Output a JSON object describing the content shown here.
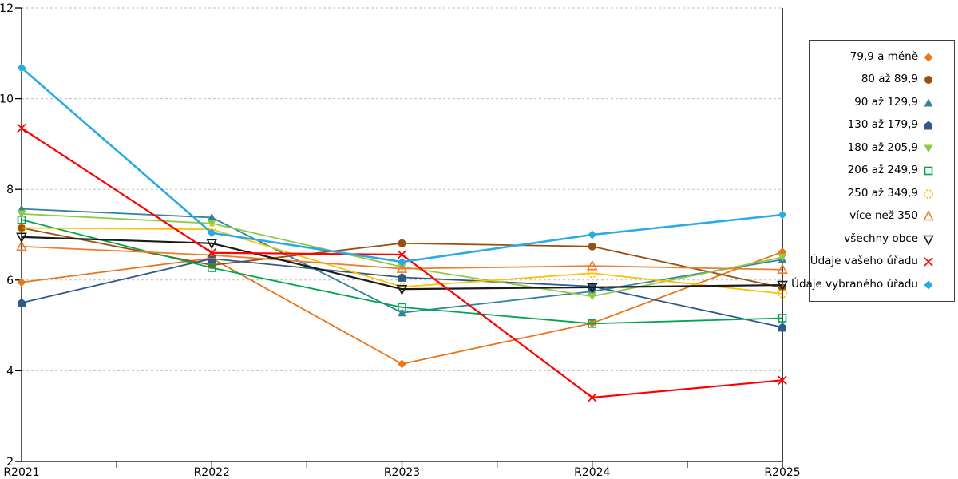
{
  "chart_data": {
    "type": "line",
    "title": "",
    "xlabel": "",
    "ylabel": "",
    "categories": [
      "R2021",
      "R2022",
      "R2023",
      "R2024",
      "R2025"
    ],
    "ylim": [
      2,
      12
    ],
    "ytick_step": 2,
    "ytick_labels": [
      "12",
      "10",
      "8",
      "6",
      "4",
      "2"
    ],
    "grid": "horizontal-dashed",
    "gridline_color": "#bfbfbf",
    "axis_color": "#000000",
    "legend_position": "right",
    "series": [
      {
        "name": "79,9 a méně",
        "color": "#e8761a",
        "marker": "diamond",
        "width": 1.8,
        "values": [
          5.95,
          6.48,
          4.15,
          5.05,
          6.62
        ]
      },
      {
        "name": "80 až 89,9",
        "color": "#9a4e10",
        "marker": "circle",
        "width": 1.8,
        "values": [
          7.15,
          6.33,
          6.81,
          6.74,
          5.83
        ]
      },
      {
        "name": "90 až 129,9",
        "color": "#31849b",
        "marker": "triangle",
        "width": 1.8,
        "values": [
          7.57,
          7.38,
          5.28,
          5.75,
          6.45
        ]
      },
      {
        "name": "130 až 179,9",
        "color": "#2e5c8a",
        "marker": "pentagon",
        "width": 1.8,
        "values": [
          5.5,
          6.47,
          6.06,
          5.86,
          4.96
        ]
      },
      {
        "name": "180 až 205,9",
        "color": "#90c944",
        "marker": "triangle-down",
        "width": 1.8,
        "values": [
          7.46,
          7.25,
          6.29,
          5.64,
          6.5
        ]
      },
      {
        "name": "206 až 249,9",
        "color": "#00a550",
        "marker": "square-open",
        "width": 1.8,
        "values": [
          7.33,
          6.27,
          5.4,
          5.04,
          5.16
        ]
      },
      {
        "name": "250 až 349,9",
        "color": "#ffc000",
        "marker": "circle-open",
        "width": 1.8,
        "values": [
          7.15,
          7.12,
          5.85,
          6.15,
          5.7
        ]
      },
      {
        "name": "více než 350",
        "color": "#ed7d31",
        "marker": "triangle-open",
        "width": 1.8,
        "values": [
          6.74,
          6.55,
          6.25,
          6.31,
          6.23
        ]
      },
      {
        "name": "všechny obce",
        "color": "#1a1a1a",
        "marker": "triangle-down-open",
        "width": 2.2,
        "values": [
          6.95,
          6.81,
          5.8,
          5.84,
          5.89
        ]
      },
      {
        "name": "Údaje vašeho úřadu",
        "color": "#fe0000",
        "marker": "x",
        "width": 2.2,
        "values": [
          9.35,
          6.6,
          6.56,
          3.41,
          3.79
        ]
      },
      {
        "name": "Údaje vybraného úřadu",
        "color": "#29abe4",
        "marker": "diamond",
        "width": 2.6,
        "values": [
          10.68,
          7.04,
          6.4,
          7.0,
          7.44
        ]
      }
    ]
  }
}
